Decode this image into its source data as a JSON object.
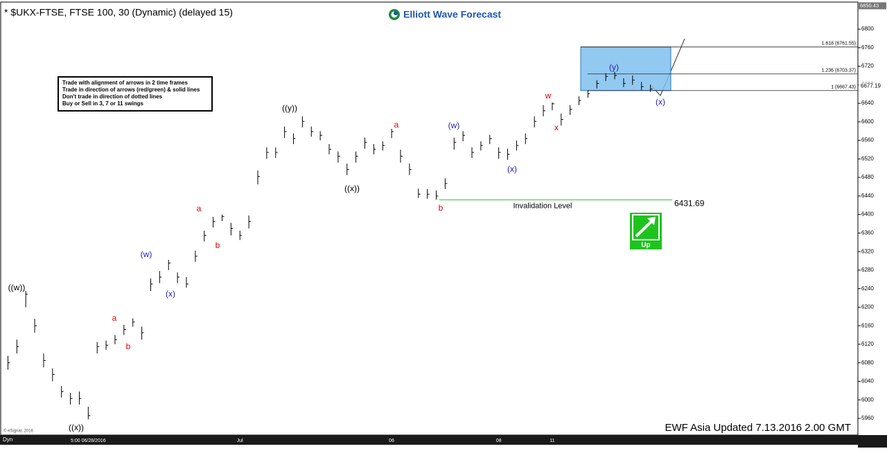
{
  "chart_data": {
    "type": "range-bar",
    "title": "* $UKX-FTSE, FTSE 100, 30 (Dynamic) (delayed 15)",
    "brand": "Elliott Wave Forecast",
    "rules": [
      "Trade with alignment of arrows in 2 time frames",
      "Trade in direction of arrows (red/green) & solid lines",
      "Don't trade in direction of dotted lines",
      "Buy or Sell in 3, 7 or 11 swings"
    ],
    "footer": "EWF Asia Updated 7.13.2016 2.00 GMT",
    "copyright": "© eSignal, 2016",
    "mode": "Dyn",
    "signal": "Up",
    "color": "#000000",
    "categories": [
      null,
      null,
      null,
      null,
      null,
      null,
      null,
      null,
      null,
      "5:00 06/28/2016",
      null,
      null,
      null,
      null,
      null,
      null,
      null,
      null,
      null,
      null,
      null,
      null,
      null,
      null,
      null,
      null,
      "Jul",
      null,
      null,
      null,
      null,
      null,
      null,
      null,
      null,
      null,
      null,
      null,
      null,
      null,
      null,
      null,
      null,
      "06",
      null,
      null,
      null,
      null,
      null,
      null,
      null,
      null,
      null,
      null,
      null,
      "08",
      null,
      null,
      null,
      null,
      null,
      "11",
      null,
      null,
      null,
      null,
      null,
      null,
      null,
      null,
      null,
      null,
      null
    ],
    "high": [
      6095,
      6130,
      6235,
      6175,
      6100,
      6068,
      6030,
      6015,
      6018,
      5985,
      6125,
      6128,
      6140,
      6162,
      6176,
      6158,
      6262,
      6278,
      6302,
      6275,
      6265,
      6322,
      6365,
      6395,
      6400,
      6382,
      6365,
      6398,
      6495,
      6545,
      6545,
      6590,
      6575,
      6612,
      6590,
      6580,
      6552,
      6536,
      6510,
      6536,
      6566,
      6552,
      6558,
      6585,
      6540,
      6510,
      6456,
      6455,
      6452,
      6478,
      6566,
      6580,
      6545,
      6558,
      6572,
      6545,
      6542,
      6560,
      6575,
      6612,
      6636,
      6642,
      6618,
      6636,
      6655,
      6668,
      6690,
      6705,
      6708,
      6694,
      6700,
      6686,
      6680
    ],
    "low": [
      6065,
      6100,
      6200,
      6145,
      6070,
      6040,
      6005,
      5990,
      5990,
      5958,
      6100,
      6108,
      6120,
      6140,
      6158,
      6130,
      6235,
      6252,
      6280,
      6252,
      6242,
      6298,
      6342,
      6372,
      6386,
      6355,
      6345,
      6370,
      6465,
      6520,
      6522,
      6565,
      6552,
      6588,
      6568,
      6560,
      6530,
      6512,
      6485,
      6512,
      6542,
      6530,
      6538,
      6565,
      6512,
      6485,
      6436,
      6434,
      6432,
      6455,
      6540,
      6558,
      6522,
      6538,
      6552,
      6520,
      6518,
      6538,
      6552,
      6588,
      6612,
      6625,
      6592,
      6615,
      6636,
      6652,
      6672,
      6688,
      6692,
      6675,
      6680,
      6668,
      6665
    ],
    "values": [
      6080,
      6115,
      6228,
      6160,
      6085,
      6055,
      6018,
      6003,
      6003,
      5966,
      6115,
      6118,
      6130,
      6152,
      6168,
      6145,
      6250,
      6265,
      6295,
      6265,
      6250,
      6310,
      6355,
      6385,
      6396,
      6370,
      6355,
      6385,
      6482,
      6534,
      6534,
      6579,
      6564,
      6601,
      6579,
      6571,
      6541,
      6526,
      6497,
      6526,
      6556,
      6541,
      6549,
      6579,
      6526,
      6497,
      6444,
      6444,
      6440,
      6467,
      6556,
      6571,
      6534,
      6549,
      6564,
      6534,
      6530,
      6549,
      6564,
      6601,
      6624,
      6639,
      6605,
      6627,
      6646,
      6661,
      6683,
      6698,
      6700,
      6683,
      6690,
      6676,
      6671
    ],
    "ylim": [
      5924,
      6851
    ],
    "yticks": [
      5960,
      6000,
      6040,
      6080,
      6120,
      6160,
      6200,
      6240,
      6280,
      6320,
      6360,
      6400,
      6440,
      6480,
      6520,
      6560,
      6600,
      6640,
      6680,
      6720,
      6760,
      6800
    ],
    "top_price": 6850.43,
    "last_price": 6677.19,
    "fib_levels": [
      {
        "value": 6761.55,
        "label": "1.618 (6761.55)"
      },
      {
        "value": 6703.37,
        "label": "1.236 (6703.37)"
      },
      {
        "value": 6667.43,
        "label": "1 (6667.43)"
      }
    ],
    "invalidation": {
      "value": 6431.69,
      "label": "Invalidation Level"
    },
    "waves": [
      {
        "text": "((w))",
        "color": "#000000"
      },
      {
        "text": "((x))",
        "color": "#000000"
      },
      {
        "text": "a",
        "color": "#e00000"
      },
      {
        "text": "b",
        "color": "#e00000"
      },
      {
        "text": "(w)",
        "color": "#2020c0"
      },
      {
        "text": "(x)",
        "color": "#2020c0"
      },
      {
        "text": "a",
        "color": "#e00000"
      },
      {
        "text": "b",
        "color": "#e00000"
      },
      {
        "text": "((y))",
        "color": "#000000"
      },
      {
        "text": "((x))",
        "color": "#000000"
      },
      {
        "text": "a",
        "color": "#e00000"
      },
      {
        "text": "b",
        "color": "#e00000"
      },
      {
        "text": "(w)",
        "color": "#2020c0"
      },
      {
        "text": "(x)",
        "color": "#2020c0"
      },
      {
        "text": "w",
        "color": "#e00000"
      },
      {
        "text": "x",
        "color": "#e00000"
      },
      {
        "text": "(y)",
        "color": "#2020c0"
      },
      {
        "text": "(x)",
        "color": "#2020c0"
      }
    ]
  }
}
